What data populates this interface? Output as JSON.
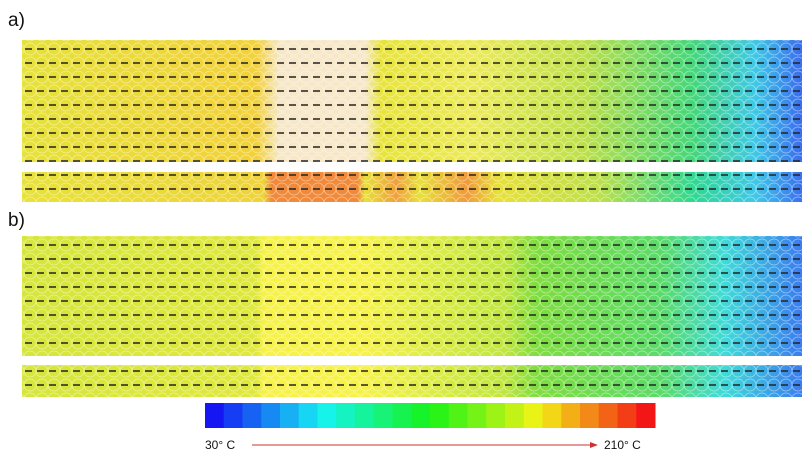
{
  "panels": [
    {
      "label": "a)"
    },
    {
      "label": "b)"
    }
  ],
  "colorbar": {
    "min_label": "30° C",
    "max_label": "210° C"
  }
}
